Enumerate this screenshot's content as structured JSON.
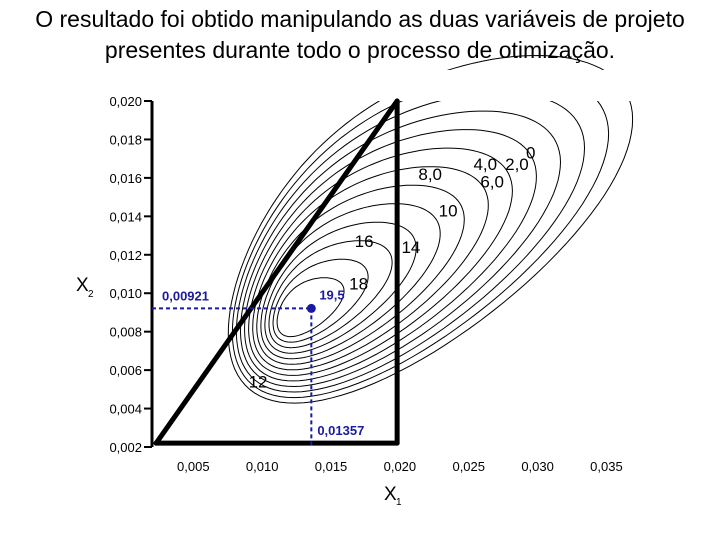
{
  "title_lines": [
    "O resultado foi obtido manipulando as duas variáveis de projeto",
    "presentes durante todo o processo de otimização."
  ],
  "chart_data": {
    "type": "contour",
    "xlabel": "X",
    "xlabel_sub": "1",
    "ylabel": "X",
    "ylabel_sub": "2",
    "xlim": [
      0.002,
      0.037
    ],
    "ylim": [
      0.002,
      0.02
    ],
    "x_ticks": [
      "0,005",
      "0,010",
      "0,015",
      "0,020",
      "0,025",
      "0,030",
      "0,035"
    ],
    "x_tick_values": [
      0.005,
      0.01,
      0.015,
      0.02,
      0.025,
      0.03,
      0.035
    ],
    "y_ticks": [
      "0,002",
      "0,004",
      "0,006",
      "0,008",
      "0,010",
      "0,012",
      "0,014",
      "0,016",
      "0,018",
      "0,020"
    ],
    "y_tick_values": [
      0.002,
      0.004,
      0.006,
      0.008,
      0.01,
      0.012,
      0.014,
      0.016,
      0.018,
      0.02
    ],
    "optimum": {
      "x": 0.01357,
      "y": 0.00921,
      "x_label": "0,01357",
      "y_label": "0,00921",
      "value_label": "19,5",
      "color": "#1a1aa0"
    },
    "contour_labels": [
      {
        "text": "0",
        "x": 0.0295,
        "y": 0.017
      },
      {
        "text": "4,0",
        "x": 0.0262,
        "y": 0.0164
      },
      {
        "text": "2,0",
        "x": 0.0285,
        "y": 0.0164
      },
      {
        "text": "6,0",
        "x": 0.0267,
        "y": 0.0155
      },
      {
        "text": "8,0",
        "x": 0.0222,
        "y": 0.0159
      },
      {
        "text": "10",
        "x": 0.0235,
        "y": 0.014
      },
      {
        "text": "16",
        "x": 0.0174,
        "y": 0.0124
      },
      {
        "text": "14",
        "x": 0.0208,
        "y": 0.0121
      },
      {
        "text": "18",
        "x": 0.017,
        "y": 0.0102
      },
      {
        "text": "12",
        "x": 0.0097,
        "y": 0.0051
      }
    ],
    "constraint_lines": [
      {
        "points": [
          [
            0.0023,
            0.0022
          ],
          [
            0.0198,
            0.02
          ]
        ]
      },
      {
        "points": [
          [
            0.0198,
            0.02
          ],
          [
            0.0198,
            0.0022
          ]
        ]
      },
      {
        "points": [
          [
            0.0023,
            0.0022
          ],
          [
            0.0198,
            0.0022
          ]
        ]
      }
    ],
    "contours": {
      "count": 13,
      "center": {
        "x": 0.0127,
        "y": 0.009
      }
    },
    "grid": false
  }
}
